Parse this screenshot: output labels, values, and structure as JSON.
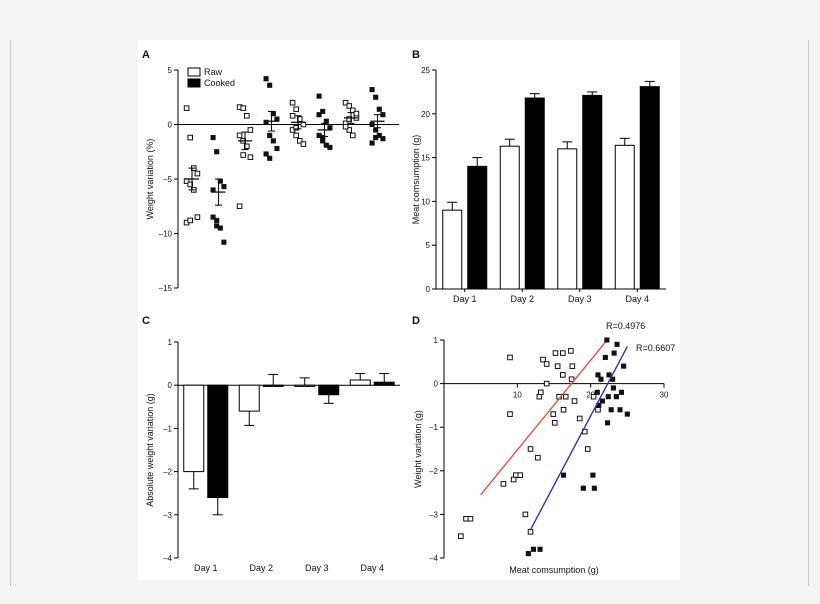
{
  "figure": {
    "panel_letters": [
      "A",
      "B",
      "C",
      "D"
    ],
    "colors": {
      "raw_fill": "#ffffff",
      "cooked_fill": "#000000",
      "raw_line": "#e8503a",
      "cooked_line": "#2a37a8"
    }
  },
  "chart_data": [
    {
      "panel": "A",
      "type": "scatter",
      "ylabel": "Weight variation (%)",
      "ylim": [
        -15,
        5
      ],
      "yticks": [
        5,
        0,
        -5,
        -10,
        -15
      ],
      "legend": {
        "position": "top-left",
        "entries": [
          "Raw",
          "Cooked"
        ]
      },
      "groups": [
        {
          "series": "Raw",
          "mean": -5.0,
          "sem": 1.0,
          "values": [
            1.5,
            -1.2,
            -4.0,
            -4.5,
            -5.2,
            -5.5,
            -6.0,
            -8.5,
            -9.0,
            -8.8
          ]
        },
        {
          "series": "Cooked",
          "mean": -6.2,
          "sem": 1.2,
          "values": [
            -1.2,
            -2.5,
            -5.2,
            -5.7,
            -6.0,
            -8.8,
            -9.5,
            -10.8,
            -8.5,
            -9.3
          ]
        },
        {
          "series": "Raw",
          "mean": -1.5,
          "sem": 0.8,
          "values": [
            1.6,
            1.5,
            0.8,
            -0.5,
            -1.0,
            -1.5,
            -2.0,
            -3.0,
            -7.5,
            -2.8
          ]
        },
        {
          "series": "Cooked",
          "mean": 0.3,
          "sem": 0.9,
          "values": [
            4.2,
            3.6,
            1.0,
            0.5,
            0.2,
            -1.0,
            -1.5,
            -2.2,
            -2.7,
            -3.1
          ]
        },
        {
          "series": "Raw",
          "mean": 0.2,
          "sem": 0.6,
          "values": [
            2.0,
            1.4,
            0.5,
            0.0,
            -0.5,
            -1.0,
            -1.5,
            -1.8,
            0.8,
            -0.3
          ]
        },
        {
          "series": "Cooked",
          "mean": -0.5,
          "sem": 0.6,
          "values": [
            2.6,
            1.2,
            0.3,
            -0.3,
            -1.0,
            -1.5,
            -1.9,
            -2.1,
            0.9,
            -1.2
          ]
        },
        {
          "series": "Raw",
          "mean": 0.6,
          "sem": 0.5,
          "values": [
            2.0,
            1.7,
            1.3,
            0.6,
            0.1,
            -0.5,
            -1.0,
            1.0,
            -0.2,
            0.5
          ]
        },
        {
          "series": "Cooked",
          "mean": 0.3,
          "sem": 0.6,
          "values": [
            3.2,
            2.5,
            1.4,
            0.9,
            0.0,
            -0.5,
            -1.0,
            -1.3,
            -1.7,
            -1.2
          ]
        }
      ]
    },
    {
      "panel": "B",
      "type": "bar",
      "ylabel": "Meat comsumption (g)",
      "ylim": [
        0,
        25
      ],
      "yticks": [
        0,
        5,
        10,
        15,
        20,
        25
      ],
      "categories": [
        "Day 1",
        "Day 2",
        "Day 3",
        "Day 4"
      ],
      "series": [
        {
          "name": "Raw",
          "values": [
            9.0,
            16.3,
            16.0,
            16.4
          ],
          "errors": [
            0.9,
            0.8,
            0.8,
            0.8
          ]
        },
        {
          "name": "Cooked",
          "values": [
            14.0,
            21.8,
            22.1,
            23.1
          ],
          "errors": [
            1.0,
            0.5,
            0.4,
            0.6
          ]
        }
      ]
    },
    {
      "panel": "C",
      "type": "bar",
      "ylabel": "Absolute weight variation (g)",
      "ylim": [
        -4,
        1
      ],
      "yticks": [
        1,
        0,
        -1,
        -2,
        -3,
        -4
      ],
      "categories": [
        "Day 1",
        "Day 2",
        "Day 3",
        "Day 4"
      ],
      "series": [
        {
          "name": "Raw",
          "values": [
            -2.0,
            -0.6,
            0.0,
            0.12
          ],
          "errors": [
            0.4,
            0.33,
            0.17,
            0.15
          ]
        },
        {
          "name": "Cooked",
          "values": [
            -2.6,
            0.0,
            -0.22,
            0.07
          ],
          "errors": [
            0.4,
            0.25,
            0.2,
            0.2
          ]
        }
      ]
    },
    {
      "panel": "D",
      "type": "scatter",
      "xlabel": "Meat comsumption (g)",
      "ylabel": "Weight variation (g)",
      "xlim": [
        0,
        30
      ],
      "ylim": [
        -4,
        1
      ],
      "xticks": [
        10,
        20,
        30
      ],
      "yticks": [
        1,
        0,
        -1,
        -2,
        -3,
        -4
      ],
      "series": [
        {
          "name": "Raw",
          "r_label": "R=0.4976",
          "fit": [
            [
              5.0,
              -2.55
            ],
            [
              22.0,
              0.95
            ]
          ],
          "points": [
            [
              2.3,
              -3.5
            ],
            [
              3.0,
              -3.1
            ],
            [
              3.6,
              -3.1
            ],
            [
              9.0,
              0.6
            ],
            [
              13.5,
              0.55
            ],
            [
              14.0,
              0.45
            ],
            [
              15.2,
              0.7
            ],
            [
              16.2,
              0.7
            ],
            [
              17.3,
              0.75
            ],
            [
              15.5,
              0.4
            ],
            [
              16.2,
              0.2
            ],
            [
              14.0,
              0.0
            ],
            [
              17.5,
              0.4
            ],
            [
              13.0,
              -0.3
            ],
            [
              15.7,
              -0.3
            ],
            [
              16.3,
              -0.6
            ],
            [
              14.9,
              -0.7
            ],
            [
              16.6,
              -0.3
            ],
            [
              11.8,
              -1.5
            ],
            [
              12.8,
              -1.7
            ],
            [
              9.8,
              -2.1
            ],
            [
              10.4,
              -2.1
            ],
            [
              9.5,
              -2.2
            ],
            [
              8.1,
              -2.3
            ],
            [
              11.1,
              -3.0
            ],
            [
              11.8,
              -3.4
            ],
            [
              9.0,
              -0.7
            ],
            [
              18.5,
              -0.8
            ],
            [
              19.2,
              -1.1
            ],
            [
              19.6,
              -1.5
            ],
            [
              17.4,
              0.1
            ],
            [
              17.8,
              -0.4
            ],
            [
              20.4,
              -0.3
            ],
            [
              21.0,
              -0.6
            ],
            [
              13.2,
              -0.2
            ],
            [
              15.1,
              -0.9
            ]
          ]
        },
        {
          "name": "Cooked",
          "r_label": "R=0.6607",
          "fit": [
            [
              11.8,
              -3.35
            ],
            [
              25.0,
              0.85
            ]
          ],
          "points": [
            [
              11.5,
              -3.9
            ],
            [
              12.2,
              -3.8
            ],
            [
              13.1,
              -3.8
            ],
            [
              16.3,
              -2.1
            ],
            [
              19.0,
              -2.4
            ],
            [
              20.5,
              -2.4
            ],
            [
              20.3,
              -2.1
            ],
            [
              22.2,
              1.0
            ],
            [
              23.6,
              0.9
            ],
            [
              23.2,
              0.7
            ],
            [
              24.5,
              0.4
            ],
            [
              21.4,
              0.1
            ],
            [
              22.5,
              0.2
            ],
            [
              23.0,
              0.1
            ],
            [
              22.4,
              -0.3
            ],
            [
              23.5,
              -0.3
            ],
            [
              21.6,
              -0.4
            ],
            [
              22.8,
              -0.6
            ],
            [
              24.0,
              -0.6
            ],
            [
              25.0,
              -0.7
            ],
            [
              21.1,
              -0.5
            ],
            [
              22.3,
              -0.9
            ],
            [
              24.2,
              -0.2
            ],
            [
              23.1,
              -0.1
            ],
            [
              22.0,
              0.6
            ],
            [
              21.0,
              0.2
            ],
            [
              20.9,
              -0.2
            ]
          ]
        }
      ]
    }
  ]
}
